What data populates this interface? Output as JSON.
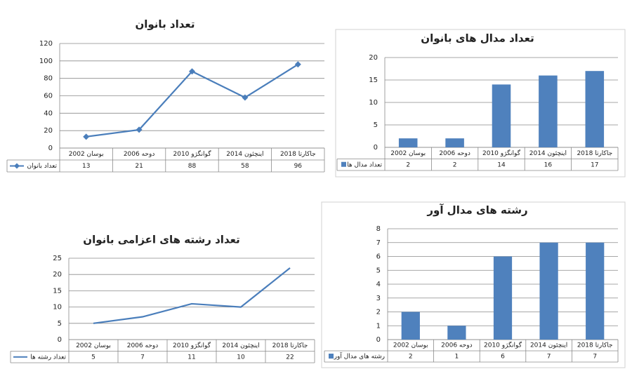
{
  "chart_data": [
    {
      "type": "line",
      "title": "تعداد بانوان",
      "categories": [
        "بوسان 2002",
        "دوحه 2006",
        "گوانگژو 2010",
        "اینچئون 2014",
        "جاکارتا 2018"
      ],
      "series": [
        {
          "name": "تعداد بانوان",
          "color": "#4a7ebb",
          "marker": "diamond",
          "values": [
            13,
            21,
            88,
            58,
            96
          ]
        }
      ],
      "ylim": [
        0,
        120
      ],
      "yticks": [
        0,
        20,
        40,
        60,
        80,
        100,
        120
      ],
      "grid": true
    },
    {
      "type": "bar",
      "title": "تعداد مدال های بانوان",
      "categories": [
        "بوسان 2002",
        "دوحه 2006",
        "گوانگژو 2010",
        "اینچئون 2014",
        "جاکارتا 2018"
      ],
      "series": [
        {
          "name": "تعداد مدال ها",
          "color": "#4f81bd",
          "values": [
            2,
            2,
            14,
            16,
            17
          ]
        }
      ],
      "ylim": [
        0,
        20
      ],
      "yticks": [
        0,
        5,
        10,
        15,
        20
      ],
      "grid": true
    },
    {
      "type": "line",
      "title": "تعداد رشته های اعزامی بانوان",
      "categories": [
        "بوسان 2002",
        "دوحه 2006",
        "گوانگژو 2010",
        "اینچئون 2014",
        "جاکارتا 2018"
      ],
      "series": [
        {
          "name": "تعداد رشته ها",
          "color": "#4a7ebb",
          "values": [
            5,
            7,
            11,
            10,
            22
          ]
        }
      ],
      "ylim": [
        0,
        25
      ],
      "yticks": [
        0,
        5,
        10,
        15,
        20,
        25
      ],
      "grid": true
    },
    {
      "type": "bar",
      "title": "رشته های مدال آور",
      "categories": [
        "بوسان 2002",
        "دوحه 2006",
        "گوانگژو 2010",
        "اینچئون 2014",
        "جاکارتا 2018"
      ],
      "series": [
        {
          "name": "رشته های مدال آور",
          "color": "#4f81bd",
          "values": [
            2,
            1,
            6,
            7,
            7
          ]
        }
      ],
      "ylim": [
        0,
        8
      ],
      "yticks": [
        0,
        1,
        2,
        3,
        4,
        5,
        6,
        7,
        8
      ],
      "grid": true
    }
  ]
}
